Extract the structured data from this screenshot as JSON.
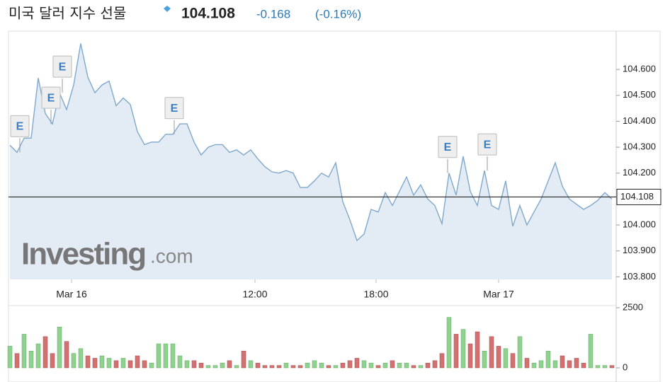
{
  "chart_data": {
    "type": "line",
    "title": "미국 달러 지수 선물",
    "last_value": 104.108,
    "change": -0.168,
    "change_percent": "(-0.16%)",
    "watermark": {
      "brand": "Investing",
      "suffix": ".com"
    },
    "line_color": "#7fa8cc",
    "area_color": "#e3ecf4",
    "values": [
      104.308,
      104.28,
      104.335,
      104.335,
      104.567,
      104.43,
      104.39,
      104.51,
      104.445,
      104.54,
      104.7,
      104.57,
      104.51,
      104.54,
      104.555,
      104.46,
      104.49,
      104.465,
      104.36,
      104.31,
      104.32,
      104.32,
      104.35,
      104.35,
      104.39,
      104.39,
      104.32,
      104.27,
      104.3,
      104.31,
      104.31,
      104.28,
      104.29,
      104.27,
      104.29,
      104.255,
      104.225,
      104.205,
      104.2,
      104.21,
      104.2,
      104.145,
      104.145,
      104.17,
      104.2,
      104.185,
      104.24,
      104.09,
      104.02,
      103.94,
      103.965,
      104.06,
      104.05,
      104.125,
      104.075,
      104.13,
      104.185,
      104.115,
      104.155,
      104.1,
      104.075,
      104.005,
      104.2,
      104.115,
      104.265,
      104.13,
      104.075,
      104.21,
      104.075,
      104.06,
      104.17,
      103.995,
      104.075,
      104,
      104.05,
      104.1,
      104.17,
      104.24,
      104.15,
      104.1,
      104.08,
      104.06,
      104.075,
      104.095,
      104.125,
      104.1
    ],
    "xlim": [
      0,
      85
    ],
    "xticks": [
      {
        "value": 8.7,
        "label": "Mar 16"
      },
      {
        "value": 34.6,
        "label": "12:00"
      },
      {
        "value": 51.7,
        "label": "18:00"
      },
      {
        "value": 69,
        "label": "Mar 17"
      }
    ],
    "ylim": [
      103.79,
      104.745
    ],
    "yticks": [
      {
        "value": 103.8,
        "label": "103.800"
      },
      {
        "value": 103.9,
        "label": "103.900"
      },
      {
        "value": 104,
        "label": "104.000"
      },
      {
        "value": 104.1,
        "label": "104.100"
      },
      {
        "value": 104.2,
        "label": "104.200"
      },
      {
        "value": 104.3,
        "label": "104.300"
      },
      {
        "value": 104.4,
        "label": "104.400"
      },
      {
        "value": 104.5,
        "label": "104.500"
      },
      {
        "value": 104.6,
        "label": "104.600"
      }
    ],
    "events": [
      {
        "index": 1.4,
        "label": "E"
      },
      {
        "index": 5.8,
        "label": "E"
      },
      {
        "index": 7.4,
        "label": "E"
      },
      {
        "index": 23.2,
        "label": "E"
      },
      {
        "index": 61.8,
        "label": "E"
      },
      {
        "index": 67.4,
        "label": "E"
      }
    ],
    "volume": {
      "values": [
        900,
        600,
        1400,
        700,
        1000,
        1300,
        600,
        1700,
        1100,
        600,
        800,
        500,
        400,
        500,
        400,
        300,
        400,
        300,
        500,
        300,
        200,
        1000,
        1000,
        1000,
        500,
        300,
        300,
        200,
        100,
        100,
        200,
        300,
        100,
        700,
        300,
        200,
        100,
        100,
        100,
        200,
        100,
        100,
        200,
        300,
        200,
        100,
        100,
        200,
        300,
        400,
        300,
        200,
        100,
        200,
        300,
        200,
        200,
        100,
        100,
        200,
        300,
        600,
        2100,
        1400,
        1600,
        1000,
        1500,
        700,
        1300,
        900,
        800,
        600,
        1300,
        400,
        200,
        300,
        700,
        300,
        500,
        300,
        400,
        200,
        1400,
        100,
        100,
        100
      ],
      "ylim": [
        0,
        2500
      ],
      "yticks": [
        0,
        2500
      ],
      "up_color": "#8fd18f",
      "down_color": "#d47070"
    }
  }
}
